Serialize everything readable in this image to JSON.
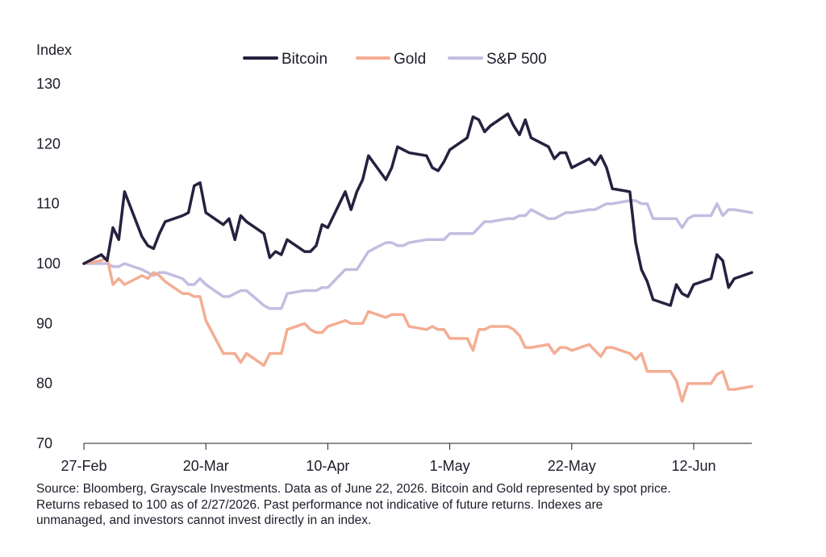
{
  "chart_data": {
    "type": "line",
    "ylabel": "Index",
    "ylim": [
      70,
      130
    ],
    "yticks": [
      "130",
      "120",
      "110",
      "100",
      "90",
      "80",
      "70"
    ],
    "xlim": [
      "2026-02-27",
      "2026-06-22"
    ],
    "xticks": [
      {
        "date": "2026-02-27",
        "label": "27-Feb"
      },
      {
        "date": "2026-03-20",
        "label": "20-Mar"
      },
      {
        "date": "2026-04-10",
        "label": "10-Apr"
      },
      {
        "date": "2026-05-01",
        "label": "1-May"
      },
      {
        "date": "2026-05-22",
        "label": "22-May"
      },
      {
        "date": "2026-06-12",
        "label": "12-Jun"
      }
    ],
    "legend": "top-center",
    "grid": false,
    "series": [
      {
        "name": "Bitcoin",
        "color": "#24223f",
        "points": [
          [
            "2026-02-27",
            100
          ],
          [
            "2026-03-02",
            101.5
          ],
          [
            "2026-03-03",
            100.5
          ],
          [
            "2026-03-04",
            106
          ],
          [
            "2026-03-05",
            104
          ],
          [
            "2026-03-06",
            112
          ],
          [
            "2026-03-09",
            104.5
          ],
          [
            "2026-03-10",
            103
          ],
          [
            "2026-03-11",
            102.5
          ],
          [
            "2026-03-12",
            105
          ],
          [
            "2026-03-13",
            107
          ],
          [
            "2026-03-16",
            108
          ],
          [
            "2026-03-17",
            108.5
          ],
          [
            "2026-03-18",
            113
          ],
          [
            "2026-03-19",
            113.5
          ],
          [
            "2026-03-20",
            108.5
          ],
          [
            "2026-03-23",
            106.5
          ],
          [
            "2026-03-24",
            107.5
          ],
          [
            "2026-03-25",
            104
          ],
          [
            "2026-03-26",
            108
          ],
          [
            "2026-03-27",
            107
          ],
          [
            "2026-03-30",
            105
          ],
          [
            "2026-03-31",
            101
          ],
          [
            "2026-04-01",
            102
          ],
          [
            "2026-04-02",
            101.5
          ],
          [
            "2026-04-03",
            104
          ],
          [
            "2026-04-06",
            102
          ],
          [
            "2026-04-07",
            102
          ],
          [
            "2026-04-08",
            103
          ],
          [
            "2026-04-09",
            106.5
          ],
          [
            "2026-04-10",
            106
          ],
          [
            "2026-04-13",
            112
          ],
          [
            "2026-04-14",
            109
          ],
          [
            "2026-04-15",
            112
          ],
          [
            "2026-04-16",
            114
          ],
          [
            "2026-04-17",
            118
          ],
          [
            "2026-04-20",
            114
          ],
          [
            "2026-04-21",
            116
          ],
          [
            "2026-04-22",
            119.5
          ],
          [
            "2026-04-23",
            119
          ],
          [
            "2026-04-24",
            118.5
          ],
          [
            "2026-04-27",
            118
          ],
          [
            "2026-04-28",
            116
          ],
          [
            "2026-04-29",
            115.5
          ],
          [
            "2026-04-30",
            117
          ],
          [
            "2026-05-01",
            119
          ],
          [
            "2026-05-04",
            121
          ],
          [
            "2026-05-05",
            124.5
          ],
          [
            "2026-05-06",
            124
          ],
          [
            "2026-05-07",
            122
          ],
          [
            "2026-05-08",
            123
          ],
          [
            "2026-05-11",
            125
          ],
          [
            "2026-05-12",
            123
          ],
          [
            "2026-05-13",
            121.5
          ],
          [
            "2026-05-14",
            124
          ],
          [
            "2026-05-15",
            121
          ],
          [
            "2026-05-18",
            119.5
          ],
          [
            "2026-05-19",
            117.5
          ],
          [
            "2026-05-20",
            118.5
          ],
          [
            "2026-05-21",
            118.5
          ],
          [
            "2026-05-22",
            116
          ],
          [
            "2026-05-25",
            117.5
          ],
          [
            "2026-05-26",
            116.5
          ],
          [
            "2026-05-27",
            118
          ],
          [
            "2026-05-28",
            116
          ],
          [
            "2026-05-29",
            112.5
          ],
          [
            "2026-06-01",
            112
          ],
          [
            "2026-06-02",
            103.5
          ],
          [
            "2026-06-03",
            99
          ],
          [
            "2026-06-04",
            97
          ],
          [
            "2026-06-05",
            94
          ],
          [
            "2026-06-08",
            93
          ],
          [
            "2026-06-09",
            96.5
          ],
          [
            "2026-06-10",
            95
          ],
          [
            "2026-06-11",
            94.5
          ],
          [
            "2026-06-12",
            96.5
          ],
          [
            "2026-06-15",
            97.5
          ],
          [
            "2026-06-16",
            101.5
          ],
          [
            "2026-06-17",
            100.5
          ],
          [
            "2026-06-18",
            96
          ],
          [
            "2026-06-19",
            97.5
          ],
          [
            "2026-06-22",
            98.5
          ]
        ]
      },
      {
        "name": "Gold",
        "color": "#f4ad93",
        "points": [
          [
            "2026-02-27",
            100
          ],
          [
            "2026-03-02",
            100.5
          ],
          [
            "2026-03-03",
            101
          ],
          [
            "2026-03-04",
            96.5
          ],
          [
            "2026-03-05",
            97.5
          ],
          [
            "2026-03-06",
            96.5
          ],
          [
            "2026-03-09",
            98
          ],
          [
            "2026-03-10",
            97.5
          ],
          [
            "2026-03-11",
            98.5
          ],
          [
            "2026-03-12",
            98
          ],
          [
            "2026-03-13",
            97
          ],
          [
            "2026-03-16",
            95
          ],
          [
            "2026-03-17",
            95
          ],
          [
            "2026-03-18",
            94.5
          ],
          [
            "2026-03-19",
            94.5
          ],
          [
            "2026-03-20",
            90.5
          ],
          [
            "2026-03-23",
            85
          ],
          [
            "2026-03-24",
            85
          ],
          [
            "2026-03-25",
            85
          ],
          [
            "2026-03-26",
            83.5
          ],
          [
            "2026-03-27",
            85
          ],
          [
            "2026-03-30",
            83
          ],
          [
            "2026-03-31",
            85
          ],
          [
            "2026-04-01",
            85
          ],
          [
            "2026-04-02",
            85
          ],
          [
            "2026-04-03",
            89
          ],
          [
            "2026-04-06",
            90
          ],
          [
            "2026-04-07",
            89
          ],
          [
            "2026-04-08",
            88.5
          ],
          [
            "2026-04-09",
            88.5
          ],
          [
            "2026-04-10",
            89.5
          ],
          [
            "2026-04-13",
            90.5
          ],
          [
            "2026-04-14",
            90
          ],
          [
            "2026-04-15",
            90
          ],
          [
            "2026-04-16",
            90
          ],
          [
            "2026-04-17",
            92
          ],
          [
            "2026-04-20",
            91
          ],
          [
            "2026-04-21",
            91.5
          ],
          [
            "2026-04-22",
            91.5
          ],
          [
            "2026-04-23",
            91.5
          ],
          [
            "2026-04-24",
            89.5
          ],
          [
            "2026-04-27",
            89
          ],
          [
            "2026-04-28",
            89.5
          ],
          [
            "2026-04-29",
            89
          ],
          [
            "2026-04-30",
            89
          ],
          [
            "2026-05-01",
            87.5
          ],
          [
            "2026-05-04",
            87.5
          ],
          [
            "2026-05-05",
            85.5
          ],
          [
            "2026-05-06",
            89
          ],
          [
            "2026-05-07",
            89
          ],
          [
            "2026-05-08",
            89.5
          ],
          [
            "2026-05-11",
            89.5
          ],
          [
            "2026-05-12",
            89
          ],
          [
            "2026-05-13",
            88
          ],
          [
            "2026-05-14",
            86
          ],
          [
            "2026-05-15",
            86
          ],
          [
            "2026-05-18",
            86.5
          ],
          [
            "2026-05-19",
            85
          ],
          [
            "2026-05-20",
            86
          ],
          [
            "2026-05-21",
            86
          ],
          [
            "2026-05-22",
            85.5
          ],
          [
            "2026-05-25",
            86.5
          ],
          [
            "2026-05-26",
            85.5
          ],
          [
            "2026-05-27",
            84.5
          ],
          [
            "2026-05-28",
            86
          ],
          [
            "2026-05-29",
            86
          ],
          [
            "2026-06-01",
            85
          ],
          [
            "2026-06-02",
            84
          ],
          [
            "2026-06-03",
            85
          ],
          [
            "2026-06-04",
            82
          ],
          [
            "2026-06-05",
            82
          ],
          [
            "2026-06-08",
            82
          ],
          [
            "2026-06-09",
            80.5
          ],
          [
            "2026-06-10",
            77
          ],
          [
            "2026-06-11",
            80
          ],
          [
            "2026-06-12",
            80
          ],
          [
            "2026-06-15",
            80
          ],
          [
            "2026-06-16",
            81.5
          ],
          [
            "2026-06-17",
            82
          ],
          [
            "2026-06-18",
            79
          ],
          [
            "2026-06-19",
            79
          ],
          [
            "2026-06-22",
            79.5
          ]
        ]
      },
      {
        "name": "S&P 500",
        "color": "#c2bee0",
        "points": [
          [
            "2026-02-27",
            100
          ],
          [
            "2026-03-02",
            100
          ],
          [
            "2026-03-03",
            100
          ],
          [
            "2026-03-04",
            99.5
          ],
          [
            "2026-03-05",
            99.5
          ],
          [
            "2026-03-06",
            100
          ],
          [
            "2026-03-09",
            99
          ],
          [
            "2026-03-10",
            98.5
          ],
          [
            "2026-03-11",
            98
          ],
          [
            "2026-03-12",
            98.5
          ],
          [
            "2026-03-13",
            98.5
          ],
          [
            "2026-03-16",
            97.5
          ],
          [
            "2026-03-17",
            96.5
          ],
          [
            "2026-03-18",
            96.5
          ],
          [
            "2026-03-19",
            97.5
          ],
          [
            "2026-03-20",
            96.5
          ],
          [
            "2026-03-23",
            94.5
          ],
          [
            "2026-03-24",
            94.5
          ],
          [
            "2026-03-25",
            95
          ],
          [
            "2026-03-26",
            95.5
          ],
          [
            "2026-03-27",
            95.5
          ],
          [
            "2026-03-30",
            93
          ],
          [
            "2026-03-31",
            92.5
          ],
          [
            "2026-04-01",
            92.5
          ],
          [
            "2026-04-02",
            92.5
          ],
          [
            "2026-04-03",
            95
          ],
          [
            "2026-04-06",
            95.5
          ],
          [
            "2026-04-07",
            95.5
          ],
          [
            "2026-04-08",
            95.5
          ],
          [
            "2026-04-09",
            96
          ],
          [
            "2026-04-10",
            96
          ],
          [
            "2026-04-13",
            99
          ],
          [
            "2026-04-14",
            99
          ],
          [
            "2026-04-15",
            99
          ],
          [
            "2026-04-16",
            100.5
          ],
          [
            "2026-04-17",
            102
          ],
          [
            "2026-04-20",
            103.5
          ],
          [
            "2026-04-21",
            103.5
          ],
          [
            "2026-04-22",
            103
          ],
          [
            "2026-04-23",
            103
          ],
          [
            "2026-04-24",
            103.5
          ],
          [
            "2026-04-27",
            104
          ],
          [
            "2026-04-28",
            104
          ],
          [
            "2026-04-29",
            104
          ],
          [
            "2026-04-30",
            104
          ],
          [
            "2026-05-01",
            105
          ],
          [
            "2026-05-04",
            105
          ],
          [
            "2026-05-05",
            105
          ],
          [
            "2026-05-06",
            106
          ],
          [
            "2026-05-07",
            107
          ],
          [
            "2026-05-08",
            107
          ],
          [
            "2026-05-11",
            107.5
          ],
          [
            "2026-05-12",
            107.5
          ],
          [
            "2026-05-13",
            108
          ],
          [
            "2026-05-14",
            108
          ],
          [
            "2026-05-15",
            109
          ],
          [
            "2026-05-18",
            107.5
          ],
          [
            "2026-05-19",
            107.5
          ],
          [
            "2026-05-20",
            108
          ],
          [
            "2026-05-21",
            108.5
          ],
          [
            "2026-05-22",
            108.5
          ],
          [
            "2026-05-25",
            109
          ],
          [
            "2026-05-26",
            109
          ],
          [
            "2026-05-27",
            109.5
          ],
          [
            "2026-05-28",
            110
          ],
          [
            "2026-05-29",
            110
          ],
          [
            "2026-06-01",
            110.5
          ],
          [
            "2026-06-02",
            110.5
          ],
          [
            "2026-06-03",
            110
          ],
          [
            "2026-06-04",
            110
          ],
          [
            "2026-06-05",
            107.5
          ],
          [
            "2026-06-08",
            107.5
          ],
          [
            "2026-06-09",
            107.5
          ],
          [
            "2026-06-10",
            106
          ],
          [
            "2026-06-11",
            107.5
          ],
          [
            "2026-06-12",
            108
          ],
          [
            "2026-06-15",
            108
          ],
          [
            "2026-06-16",
            110
          ],
          [
            "2026-06-17",
            108
          ],
          [
            "2026-06-18",
            109
          ],
          [
            "2026-06-19",
            109
          ],
          [
            "2026-06-22",
            108.5
          ]
        ]
      }
    ]
  },
  "footnote": {
    "line1": "Source: Bloomberg, Grayscale Investments. Data as of June 22, 2026. Bitcoin and Gold represented by spot price.",
    "line2": "Returns rebased to 100 as of 2/27/2026. Past performance not indicative of future returns. Indexes are",
    "line3": "unmanaged, and investors cannot invest directly in an index."
  }
}
